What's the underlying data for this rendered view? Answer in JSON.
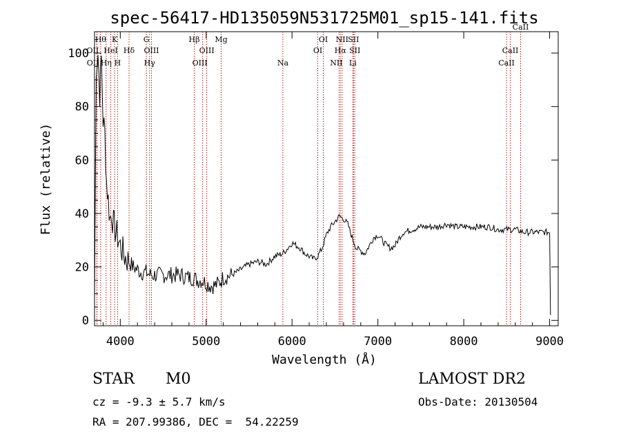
{
  "chart_data": {
    "type": "line",
    "title": "spec-56417-HD135059N531725M01_sp15-141.fits",
    "xlabel": "Wavelength (Å)",
    "ylabel": "Flux (relative)",
    "xlim": [
      3700,
      9100
    ],
    "ylim": [
      -2,
      108
    ],
    "x_ticks": [
      4000,
      5000,
      6000,
      7000,
      8000,
      9000
    ],
    "x_tick_labels": [
      "4000",
      "5000",
      "6000",
      "7000",
      "8000",
      "9000"
    ],
    "y_ticks": [
      0,
      20,
      40,
      60,
      80,
      100
    ],
    "y_tick_labels": [
      "0",
      "20",
      "40",
      "60",
      "80",
      "100"
    ],
    "grid": false,
    "series": [
      {
        "x": [
          3700,
          3720,
          3740,
          3760,
          3780,
          3800,
          3820,
          3840,
          3860,
          3880,
          3900,
          3920,
          3940,
          3960,
          3980,
          4000,
          4050,
          4100,
          4150,
          4200,
          4250,
          4300,
          4350,
          4400,
          4450,
          4500,
          4600,
          4700,
          4800,
          4850,
          4900,
          4950,
          5000,
          5050,
          5100,
          5150,
          5200,
          5300,
          5400,
          5500,
          5600,
          5700,
          5800,
          5890,
          5950,
          6000,
          6050,
          6100,
          6150,
          6200,
          6250,
          6300,
          6350,
          6400,
          6450,
          6500,
          6550,
          6600,
          6650,
          6700,
          6750,
          6800,
          6850,
          6900,
          6950,
          7000,
          7050,
          7100,
          7150,
          7200,
          7250,
          7300,
          7400,
          7500,
          7600,
          7700,
          7800,
          7900,
          8000,
          8100,
          8200,
          8300,
          8400,
          8500,
          8600,
          8700,
          8800,
          8900,
          9000,
          9010
        ],
        "y": [
          8,
          95,
          100,
          85,
          98,
          75,
          70,
          52,
          45,
          38,
          40,
          36,
          34,
          32,
          30,
          28,
          24,
          22,
          20,
          19,
          18,
          18,
          17,
          17,
          17,
          17,
          17,
          17,
          16,
          16,
          15,
          15,
          14,
          13,
          13,
          14,
          16,
          17,
          19,
          21,
          22,
          21,
          24,
          25,
          27,
          29,
          28,
          27,
          25,
          24,
          23,
          24,
          27,
          32,
          35,
          37,
          39,
          38,
          36,
          31,
          27,
          26,
          25,
          28,
          31,
          32,
          30,
          28,
          27,
          28,
          31,
          33,
          34,
          35,
          35,
          35,
          36,
          35,
          35,
          35,
          35,
          35,
          34,
          34,
          34,
          33,
          33,
          33,
          33,
          2
        ]
      }
    ],
    "lines": [
      {
        "wl": 3727,
        "label": "OII",
        "row": 2,
        "dx": -6
      },
      {
        "wl": 3729,
        "label": "OII",
        "row": 3,
        "dx": -6
      },
      {
        "wl": 3771,
        "label": "Hθ",
        "row": 1,
        "dx": 0
      },
      {
        "wl": 3835,
        "label": "Hη",
        "row": 3,
        "dx": 0
      },
      {
        "wl": 3889,
        "label": "HeI",
        "row": 2,
        "dx": 0
      },
      {
        "wl": 3934,
        "label": "K",
        "row": 1,
        "dx": 0
      },
      {
        "wl": 3969,
        "label": "H",
        "row": 3,
        "dx": 0
      },
      {
        "wl": 4102,
        "label": "Hδ",
        "row": 2,
        "dx": 0
      },
      {
        "wl": 4304,
        "label": "G",
        "row": 1,
        "dx": 0
      },
      {
        "wl": 4341,
        "label": "Hγ",
        "row": 3,
        "dx": 0
      },
      {
        "wl": 4363,
        "label": "OIII",
        "row": 2,
        "dx": 0
      },
      {
        "wl": 4861,
        "label": "Hβ",
        "row": 1,
        "dx": 0
      },
      {
        "wl": 4959,
        "label": "OIII",
        "row": 3,
        "dx": -4
      },
      {
        "wl": 5007,
        "label": "OIII",
        "row": 2,
        "dx": 0
      },
      {
        "wl": 5175,
        "label": "Mg",
        "row": 1,
        "dx": 0
      },
      {
        "wl": 5893,
        "label": "Na",
        "row": 3,
        "dx": 0
      },
      {
        "wl": 6300,
        "label": "OI",
        "row": 2,
        "dx": 0
      },
      {
        "wl": 6364,
        "label": "OI",
        "row": 1,
        "dx": 0
      },
      {
        "wl": 6548,
        "label": "NII",
        "row": 3,
        "dx": -4
      },
      {
        "wl": 6563,
        "label": "Hα",
        "row": 2,
        "dx": 0
      },
      {
        "wl": 6583,
        "label": "NII",
        "row": 1,
        "dx": 0
      },
      {
        "wl": 6708,
        "label": "Li",
        "row": 3,
        "dx": 0
      },
      {
        "wl": 6716,
        "label": "SII",
        "row": 1,
        "dx": 0
      },
      {
        "wl": 6731,
        "label": "SII",
        "row": 2,
        "dx": 0
      },
      {
        "wl": 8498,
        "label": "CaII",
        "row": 3,
        "dx": 0
      },
      {
        "wl": 8542,
        "label": "CaII",
        "row": 2,
        "dx": 0
      },
      {
        "wl": 8662,
        "label": "CaII",
        "row": 0,
        "dx": 0
      }
    ]
  },
  "footer": {
    "object_class": "STAR",
    "subclass": "M0",
    "survey": "LAMOST DR2",
    "cz": "cz = -9.3 ± 5.7 km/s",
    "obs_date": "Obs-Date: 20130504",
    "coords": "RA = 207.99386, DEC =  54.22259"
  }
}
